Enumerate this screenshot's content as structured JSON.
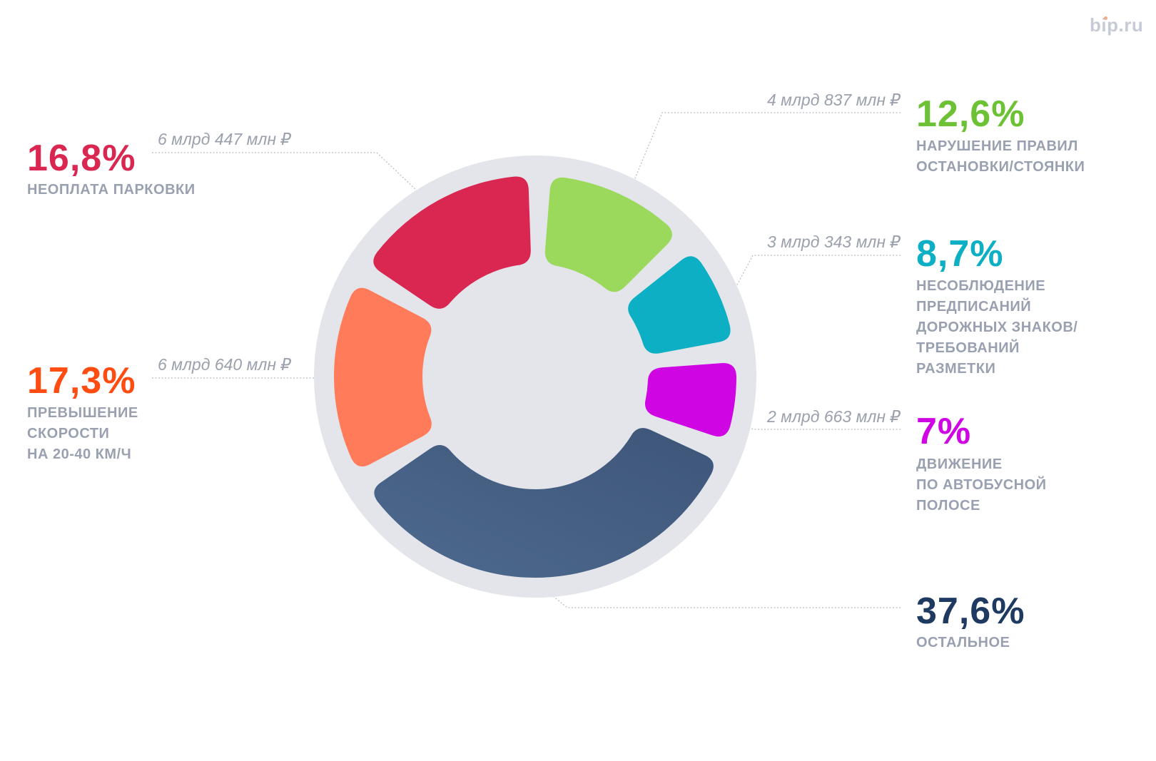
{
  "brand": {
    "logo": "bip.ru"
  },
  "chart_data": {
    "type": "pie",
    "variant": "donut",
    "title": "",
    "background_ring_color": "#e3e5ea",
    "slices": [
      {
        "id": "parking",
        "percent_label": "16,8%",
        "value": 16.8,
        "amount": "6 млрд 447 млн ₽",
        "label_lines": [
          "НЕОПЛАТА ПАРКОВКИ"
        ],
        "color": "#da2752",
        "text_color": "#da2752"
      },
      {
        "id": "stopping",
        "percent_label": "12,6%",
        "value": 12.6,
        "amount": "4 млрд 837 млн ₽",
        "label_lines": [
          "НАРУШЕНИЕ ПРАВИЛ",
          "ОСТАНОВКИ/СТОЯНКИ"
        ],
        "color": "#9bd95d",
        "text_color": "#6cc234"
      },
      {
        "id": "signs",
        "percent_label": "8,7%",
        "value": 8.7,
        "amount": "3 млрд 343 млн ₽",
        "label_lines": [
          "НЕСОБЛЮДЕНИЕ",
          "ПРЕДПИСАНИЙ",
          "ДОРОЖНЫХ ЗНАКОВ/",
          "ТРЕБОВАНИЙ",
          "РАЗМЕТКИ"
        ],
        "color": "#0cafc4",
        "text_color": "#0cafc4"
      },
      {
        "id": "bus_lane",
        "percent_label": "7%",
        "value": 7.0,
        "amount": "2 млрд 663 млн ₽",
        "label_lines": [
          "ДВИЖЕНИЕ",
          "ПО АВТОБУСНОЙ",
          "ПОЛОСЕ"
        ],
        "color": "#cf05e4",
        "text_color": "#cf05e4"
      },
      {
        "id": "other",
        "percent_label": "37,6%",
        "value": 37.6,
        "amount": "",
        "label_lines": [
          "ОСТАЛЬНОЕ"
        ],
        "color": "#4b6487",
        "text_color": "#1f3a60"
      },
      {
        "id": "speeding",
        "percent_label": "17,3%",
        "value": 17.3,
        "amount": "6 млрд 640 млн ₽",
        "label_lines": [
          "ПРЕВЫШЕНИЕ",
          "СКОРОСТИ",
          "НА 20-40 КМ/Ч"
        ],
        "color": "#ff7b5a",
        "text_color": "#ff4d12"
      }
    ],
    "legend": "callouts-around"
  }
}
